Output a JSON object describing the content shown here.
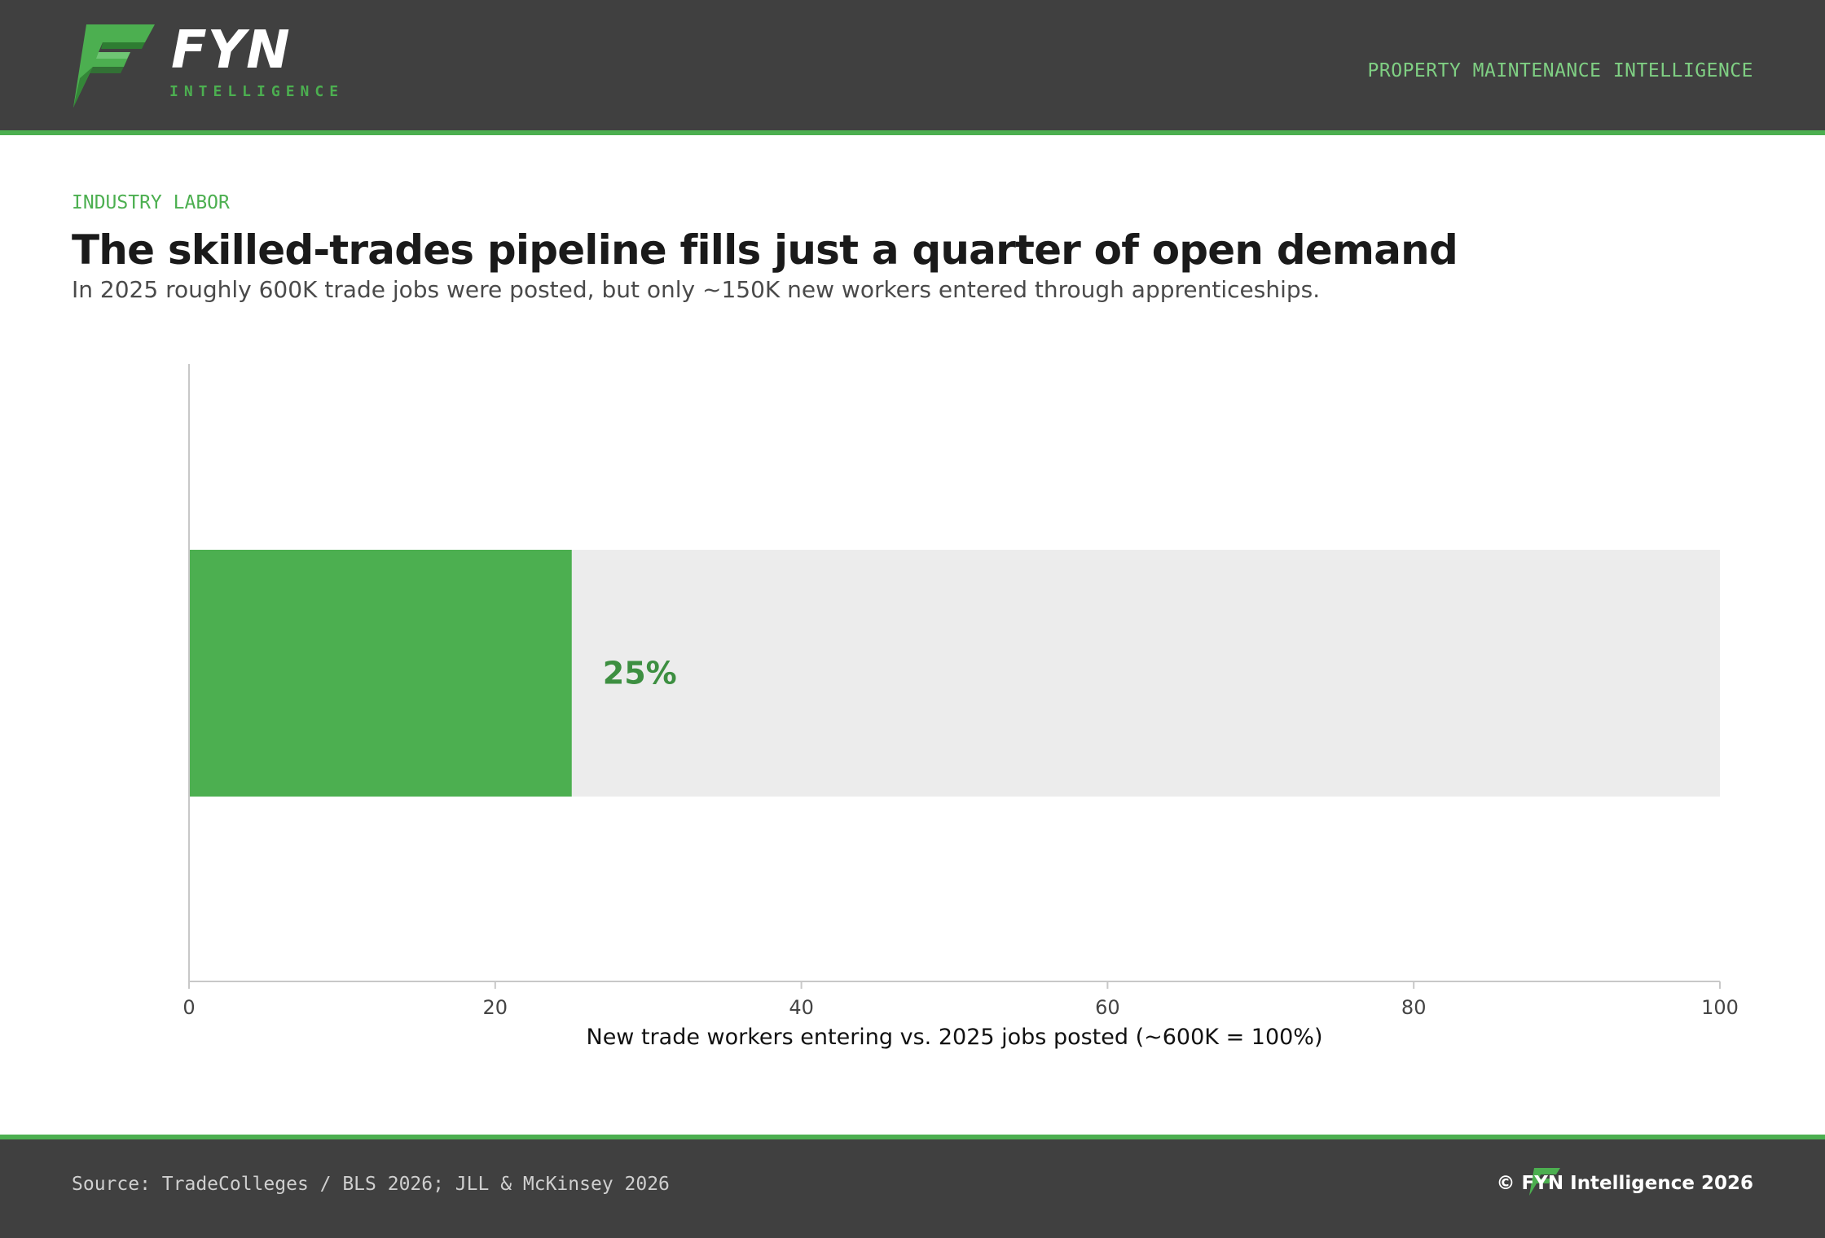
{
  "header": {
    "brand": "FYN",
    "brand_sub": "INTELLIGENCE",
    "tagline": "PROPERTY MAINTENANCE INTELLIGENCE"
  },
  "eyebrow": "INDUSTRY LABOR",
  "title": "The skilled-trades pipeline fills just a quarter of open demand",
  "subtitle": "In 2025 roughly 600K trade jobs were posted, but only ~150K new workers entered through apprenticeships.",
  "chart_data": {
    "type": "bar",
    "orientation": "horizontal",
    "categories": [
      ""
    ],
    "values": [
      25
    ],
    "background_values": [
      100
    ],
    "data_labels": [
      "25%"
    ],
    "xlabel": "New trade workers entering vs. 2025 jobs posted (~600K = 100%)",
    "ylabel": "",
    "xlim": [
      0,
      100
    ],
    "xticks": [
      0,
      20,
      40,
      60,
      80,
      100
    ],
    "grid": false,
    "colors": {
      "bar": "#4caf50",
      "background_bar": "#ececec",
      "data_label": "#3d8f41",
      "axis": "#c8c8c8"
    }
  },
  "footer": {
    "source": "Source: TradeColleges / BLS 2026; JLL & McKinsey 2026",
    "copyright": "© FYN Intelligence 2026"
  },
  "colors": {
    "header_bg": "#404040",
    "accent": "#4caf50"
  }
}
